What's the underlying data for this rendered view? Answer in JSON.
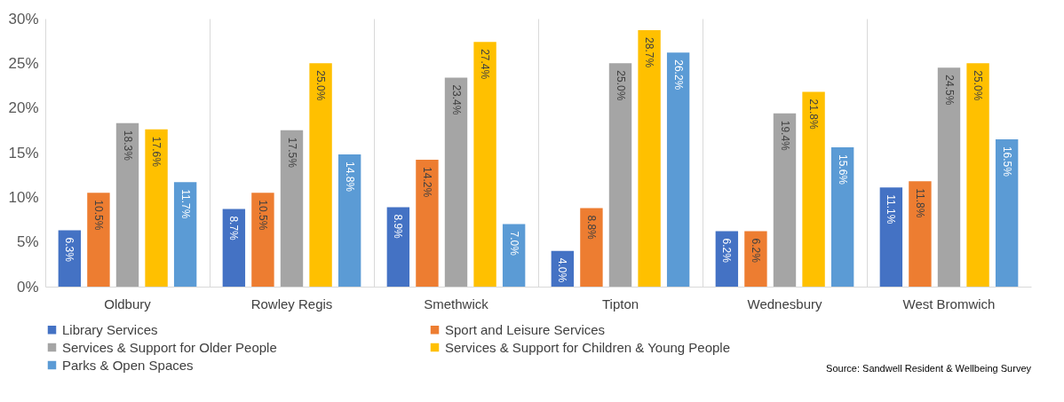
{
  "chart_data": {
    "type": "bar",
    "categories": [
      "Oldbury",
      "Rowley Regis",
      "Smethwick",
      "Tipton",
      "Wednesbury",
      "West Bromwich"
    ],
    "series": [
      {
        "name": "Library Services",
        "color": "#4472c4",
        "values": [
          6.3,
          8.7,
          8.9,
          4.0,
          6.2,
          11.1
        ],
        "value_labels": [
          "6.3%",
          "8.7%",
          "8.9%",
          "4.0%",
          "6.2%",
          "11.1%"
        ]
      },
      {
        "name": "Sport and Leisure Services",
        "color": "#ed7d31",
        "values": [
          10.5,
          10.5,
          14.2,
          8.8,
          6.2,
          11.8
        ],
        "value_labels": [
          "10.5%",
          "10.5%",
          "14.2%",
          "8.8%",
          "6.2%",
          "11.8%"
        ]
      },
      {
        "name": "Services & Support for Older People",
        "color": "#a5a5a5",
        "values": [
          18.3,
          17.5,
          23.4,
          25.0,
          19.4,
          24.5
        ],
        "value_labels": [
          "18.3%",
          "17.5%",
          "23.4%",
          "25.0%",
          "19.4%",
          "24.5%"
        ]
      },
      {
        "name": "Services & Support for Children & Young People",
        "color": "#ffc000",
        "values": [
          17.6,
          25.0,
          27.4,
          28.7,
          21.8,
          25.0
        ],
        "value_labels": [
          "17.6%",
          "25.0%",
          "27.4%",
          "28.7%",
          "21.8%",
          "25.0%"
        ]
      },
      {
        "name": "Parks & Open Spaces",
        "color": "#5b9bd5",
        "values": [
          11.7,
          14.8,
          7.0,
          26.2,
          15.6,
          16.5
        ],
        "value_labels": [
          "11.7%",
          "14.8%",
          "7.0%",
          "26.2%",
          "15.6%",
          "16.5%"
        ]
      }
    ],
    "ylim": [
      0,
      30
    ],
    "yticks": [
      {
        "value": 0,
        "label": "0%"
      },
      {
        "value": 5,
        "label": "5%"
      },
      {
        "value": 10,
        "label": "10%"
      },
      {
        "value": 15,
        "label": "15%"
      },
      {
        "value": 20,
        "label": "20%"
      },
      {
        "value": 25,
        "label": "25%"
      },
      {
        "value": 30,
        "label": "30%"
      }
    ],
    "grid": "x",
    "legend": "bottom",
    "annotations": [
      "Source: Sandwell Resident & Wellbeing Survey"
    ]
  }
}
